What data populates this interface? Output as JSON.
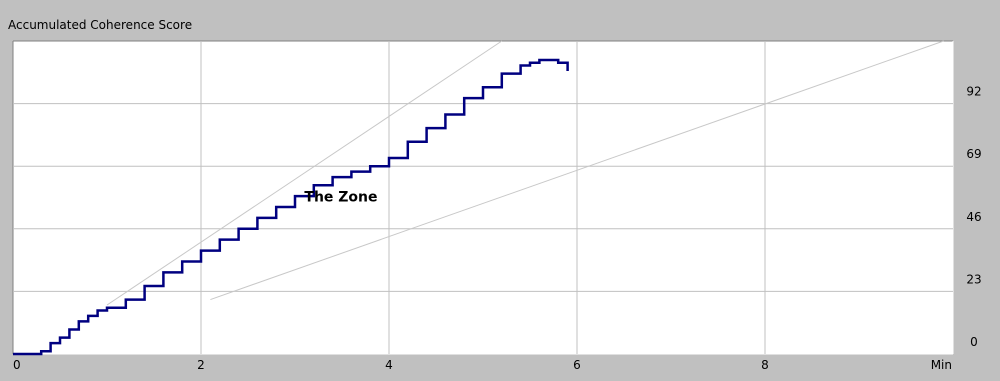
{
  "title": "Accumulated Coherence Score",
  "colors": {
    "background": "#c0c0c0",
    "plot_bg": "#ffffff",
    "grid": "#c0c0c0",
    "series": "#000080",
    "guide": "#c8c8c8"
  },
  "chart_data": {
    "type": "line",
    "title": "Accumulated Coherence Score",
    "xlabel": "Min",
    "ylabel": "",
    "xlim": [
      0,
      10
    ],
    "ylim": [
      0,
      115
    ],
    "x_ticks": [
      0,
      2,
      4,
      6,
      8
    ],
    "x_tick_labels": [
      "0",
      "2",
      "4",
      "6",
      "8"
    ],
    "x_unit_label": "Min",
    "y_ticks": [
      0,
      23,
      46,
      69,
      92
    ],
    "y_tick_labels": [
      "0",
      "23",
      "46",
      "69",
      "92"
    ],
    "y_axis_side": "right",
    "grid": true,
    "annotations": [
      {
        "text": "The Zone",
        "x": 3.1,
        "y": 56
      }
    ],
    "series": [
      {
        "style": "step",
        "x": [
          0,
          0.1,
          0.2,
          0.3,
          0.4,
          0.5,
          0.6,
          0.7,
          0.8,
          0.9,
          1.0,
          1.2,
          1.4,
          1.6,
          1.8,
          2.0,
          2.2,
          2.4,
          2.6,
          2.8,
          3.0,
          3.2,
          3.4,
          3.6,
          3.8,
          4.0,
          4.2,
          4.4,
          4.6,
          4.8,
          5.0,
          5.2,
          5.4,
          5.5,
          5.6,
          5.7,
          5.8,
          5.9
        ],
        "y": [
          0,
          0,
          0,
          1,
          4,
          6,
          9,
          12,
          14,
          16,
          17,
          20,
          25,
          30,
          34,
          38,
          42,
          46,
          50,
          54,
          58,
          62,
          65,
          67,
          69,
          72,
          78,
          83,
          88,
          94,
          98,
          103,
          106,
          107,
          108,
          108,
          107,
          104
        ]
      },
      {
        "style": "guide",
        "x": [
          1.0,
          5.2
        ],
        "y": [
          18,
          115
        ]
      },
      {
        "style": "guide",
        "x": [
          2.1,
          9.9
        ],
        "y": [
          20,
          115
        ]
      }
    ]
  }
}
